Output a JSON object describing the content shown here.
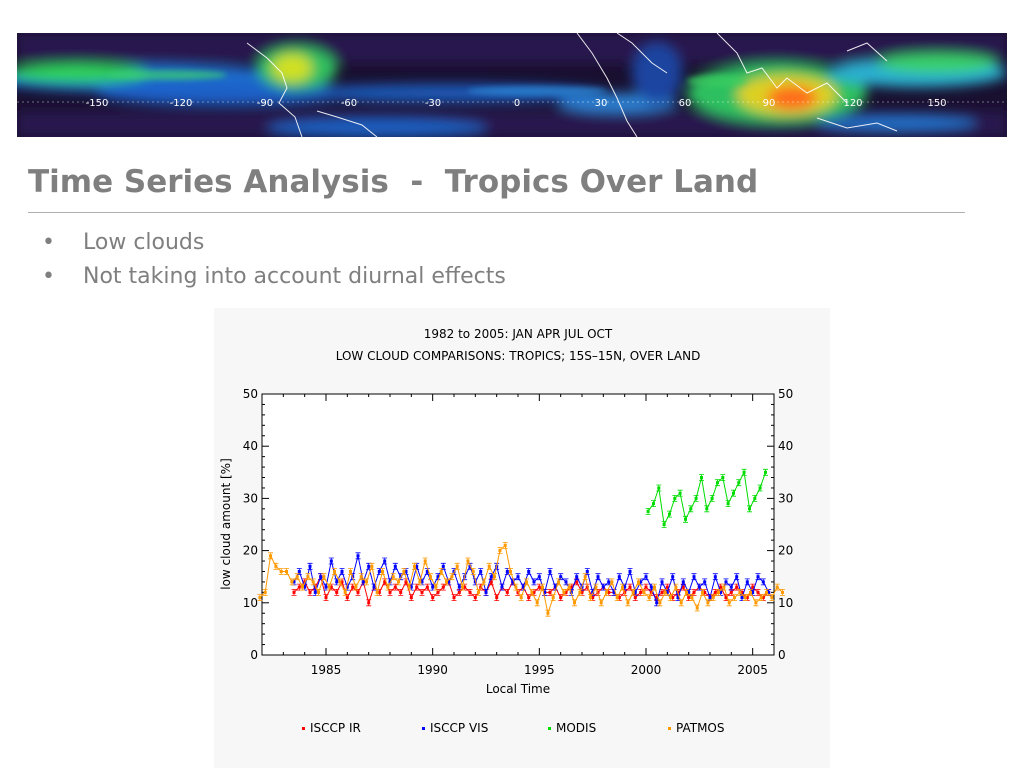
{
  "slide": {
    "title": "Time Series Analysis  -  Tropics Over Land",
    "bullets": [
      "Low clouds",
      "Not taking into account diurnal effects"
    ]
  },
  "banner": {
    "longitude_labels": [
      "-150",
      "-120",
      "-90",
      "-60",
      "-30",
      "0",
      "30",
      "60",
      "90",
      "120",
      "150"
    ]
  },
  "chart_data": {
    "type": "line",
    "title": "1982 to 2005: JAN APR JUL OCT",
    "subtitle": "LOW CLOUD COMPARISONS: TROPICS; 15S–15N, OVER LAND",
    "xlabel": "Local Time",
    "ylabel": "low cloud amount [%]",
    "xlim": [
      1982,
      2006
    ],
    "ylim": [
      0,
      50
    ],
    "x_ticks": [
      1985,
      1990,
      1995,
      2000,
      2005
    ],
    "y_ticks": [
      0,
      10,
      20,
      30,
      40,
      50
    ],
    "legend_placement": "bottom",
    "series": [
      {
        "name": "ISCCP IR",
        "color": "#ff0000",
        "x_start": 1983.5,
        "step": 0.25,
        "values": [
          12,
          13,
          14,
          12,
          13,
          15,
          11,
          13,
          12,
          14,
          11,
          13,
          12,
          14,
          10,
          13,
          12,
          14,
          12,
          13,
          12,
          14,
          11,
          13,
          12,
          13,
          11,
          12,
          13,
          14,
          11,
          12,
          13,
          12,
          11,
          13,
          12,
          14,
          11,
          13,
          12,
          14,
          12,
          13,
          11,
          12,
          13,
          12,
          12,
          13,
          11,
          12,
          13,
          14,
          12,
          13,
          11,
          12,
          13,
          12,
          12,
          11,
          12,
          13,
          11,
          12,
          13,
          12,
          11,
          12,
          13,
          11,
          12,
          13,
          11,
          12,
          13,
          12,
          11,
          12,
          13,
          11,
          12,
          13,
          12,
          11,
          13,
          12,
          11,
          12
        ]
      },
      {
        "name": "ISCCP VIS",
        "color": "#0000ff",
        "x_start": 1983.5,
        "step": 0.25,
        "values": [
          14,
          16,
          13,
          17,
          12,
          15,
          13,
          18,
          14,
          16,
          13,
          15,
          19,
          14,
          17,
          13,
          16,
          18,
          14,
          17,
          15,
          16,
          13,
          17,
          14,
          16,
          13,
          15,
          17,
          14,
          16,
          13,
          15,
          17,
          14,
          16,
          12,
          15,
          17,
          13,
          16,
          14,
          15,
          13,
          16,
          14,
          15,
          12,
          16,
          13,
          15,
          14,
          12,
          15,
          13,
          16,
          12,
          15,
          13,
          14,
          12,
          15,
          13,
          16,
          12,
          14,
          15,
          13,
          10,
          14,
          12,
          15,
          11,
          14,
          12,
          15,
          13,
          14,
          11,
          15,
          12,
          14,
          13,
          15,
          11,
          14,
          12,
          15,
          14,
          12
        ]
      },
      {
        "name": "MODIS",
        "color": "#00dd00",
        "x_start": 2000.1,
        "step": 0.25,
        "values": [
          27.5,
          29,
          32,
          25,
          27,
          30,
          31,
          26,
          28,
          30,
          34,
          28,
          30,
          33,
          34,
          29,
          31,
          33,
          35,
          28,
          30,
          32,
          35
        ]
      },
      {
        "name": "PATMOS",
        "color": "#ff9900",
        "x_start": 1981.9,
        "step": 0.25,
        "values": [
          11,
          12,
          19,
          17,
          16,
          16,
          14,
          15,
          13,
          15,
          14,
          12,
          15,
          13,
          16,
          14,
          12,
          16,
          13,
          15,
          14,
          17,
          12,
          16,
          13,
          15,
          14,
          16,
          13,
          17,
          14,
          18,
          15,
          13,
          16,
          14,
          15,
          17,
          13,
          18,
          16,
          12,
          14,
          17,
          15,
          20,
          21,
          16,
          13,
          11,
          14,
          12,
          10,
          13,
          8,
          11,
          14,
          12,
          13,
          10,
          12,
          15,
          11,
          13,
          10,
          12,
          14,
          11,
          13,
          10,
          12,
          14,
          12,
          11,
          13,
          10,
          12,
          11,
          13,
          10,
          12,
          11,
          9,
          12,
          10,
          11,
          12,
          13,
          10,
          11,
          12,
          11,
          12,
          10,
          11,
          12,
          11,
          13,
          12
        ]
      }
    ]
  }
}
